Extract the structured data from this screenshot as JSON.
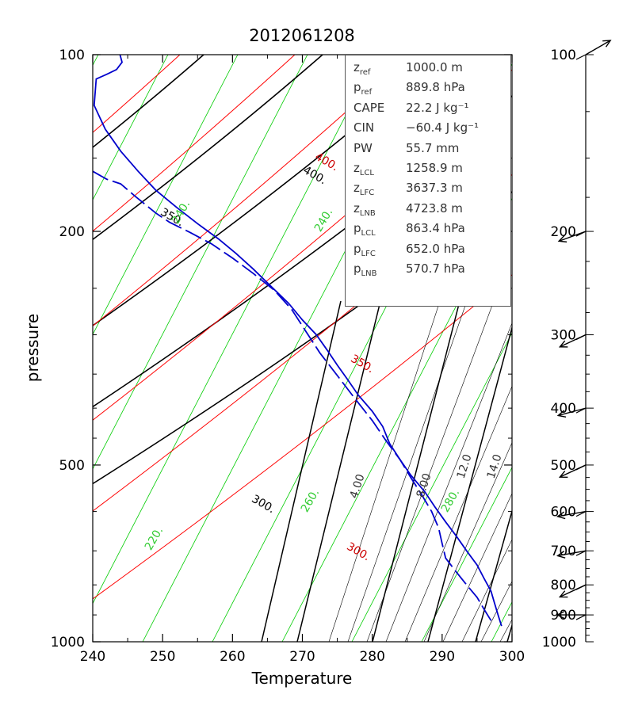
{
  "chart_data": {
    "type": "line",
    "title": "2012061208",
    "xlabel": "Temperature",
    "ylabel": "pressure",
    "xlim": [
      240,
      300
    ],
    "ylim": [
      1000,
      100
    ],
    "yscale": "log",
    "x_ticks": [
      "240",
      "250",
      "260",
      "270",
      "280",
      "290",
      "300"
    ],
    "y_tick_labels": [
      {
        "p": 100,
        "label": "100"
      },
      {
        "p": 200,
        "label": "200"
      },
      {
        "p": 500,
        "label": "500"
      },
      {
        "p": 1000,
        "label": "1000"
      }
    ],
    "dry_adiabat_labels": [
      "300.",
      "350.",
      "400."
    ],
    "moist_adiabat_labels": [
      "300.",
      "350.",
      "400."
    ],
    "isotherm_labels": [
      "240.",
      "240.",
      "260.",
      "280.",
      "220."
    ],
    "mixing_ratio_labels": [
      "4.00",
      "8.00",
      "12.0",
      "14.0"
    ],
    "series": [
      {
        "name": "temperature",
        "color": "#0000cc",
        "points": [
          [
            243.9,
            100
          ],
          [
            244.2,
            103
          ],
          [
            243.4,
            106
          ],
          [
            242.0,
            108
          ],
          [
            240.5,
            110
          ],
          [
            240.2,
            122
          ],
          [
            241.8,
            134
          ],
          [
            244.0,
            146
          ],
          [
            246.5,
            158
          ],
          [
            249.0,
            170
          ],
          [
            252.0,
            182
          ],
          [
            255.0,
            194
          ],
          [
            258.0,
            206
          ],
          [
            260.5,
            218
          ],
          [
            263.0,
            232
          ],
          [
            265.5,
            248
          ],
          [
            268.0,
            265
          ],
          [
            270.0,
            283
          ],
          [
            272.0,
            300
          ],
          [
            273.5,
            318
          ],
          [
            275.0,
            338
          ],
          [
            276.5,
            358
          ],
          [
            278.0,
            380
          ],
          [
            280.0,
            405
          ],
          [
            281.5,
            430
          ],
          [
            282.5,
            460
          ],
          [
            284.0,
            490
          ],
          [
            285.5,
            520
          ],
          [
            287.5,
            555
          ],
          [
            289.0,
            590
          ],
          [
            290.5,
            625
          ],
          [
            292.0,
            660
          ],
          [
            293.5,
            700
          ],
          [
            295.0,
            740
          ],
          [
            296.0,
            780
          ],
          [
            297.0,
            820
          ],
          [
            297.5,
            860
          ],
          [
            298.0,
            900
          ],
          [
            298.5,
            940
          ]
        ]
      },
      {
        "name": "dewpoint",
        "color": "#0000cc",
        "dashed": true,
        "points": [
          [
            240.0,
            158
          ],
          [
            242.0,
            163
          ],
          [
            244.0,
            166
          ],
          [
            246.0,
            174
          ],
          [
            249.0,
            186
          ],
          [
            251.0,
            193
          ],
          [
            254.0,
            201
          ],
          [
            257.0,
            210
          ],
          [
            260.0,
            222
          ],
          [
            263.0,
            236
          ],
          [
            266.0,
            252
          ],
          [
            268.5,
            272
          ],
          [
            270.5,
            296
          ],
          [
            272.5,
            322
          ],
          [
            275.0,
            352
          ],
          [
            277.5,
            385
          ],
          [
            280.0,
            420
          ],
          [
            282.0,
            455
          ],
          [
            284.0,
            490
          ],
          [
            285.5,
            525
          ],
          [
            287.0,
            560
          ],
          [
            288.5,
            600
          ],
          [
            289.5,
            640
          ],
          [
            290.0,
            680
          ],
          [
            290.5,
            720
          ],
          [
            292.0,
            760
          ],
          [
            293.5,
            800
          ],
          [
            295.0,
            840
          ],
          [
            296.0,
            880
          ],
          [
            297.0,
            920
          ]
        ]
      }
    ],
    "wind_profile": {
      "levels": [
        "100",
        "200",
        "300",
        "400",
        "500",
        "600",
        "700",
        "800",
        "900",
        "1000"
      ],
      "barbs": [
        {
          "p": 100,
          "dir": 60
        },
        {
          "p": 200,
          "dir": 250
        },
        {
          "p": 300,
          "dir": 245
        },
        {
          "p": 400,
          "dir": 255
        },
        {
          "p": 500,
          "dir": 245
        },
        {
          "p": 600,
          "dir": 260
        },
        {
          "p": 700,
          "dir": 260
        },
        {
          "p": 800,
          "dir": 245
        },
        {
          "p": 900,
          "dir": 270
        }
      ]
    },
    "colors": {
      "isotherm": "#00cc00",
      "dry_adiabat": "#000000",
      "moist_adiabat": "#ff0000",
      "mixing_ratio": "#000000",
      "profile": "#0000cc"
    }
  },
  "stats": [
    {
      "sym": "z",
      "sub": "ref",
      "value": "1000.0 m"
    },
    {
      "sym": "p",
      "sub": "ref",
      "value": "889.8 hPa"
    },
    {
      "sym": "CAPE",
      "sub": "",
      "value": "22.2 J kg⁻¹"
    },
    {
      "sym": "CIN",
      "sub": "",
      "value": "−60.4 J kg⁻¹"
    },
    {
      "sym": "PW",
      "sub": "",
      "value": "55.7 mm"
    },
    {
      "sym": "z",
      "sub": "LCL",
      "value": "1258.9 m"
    },
    {
      "sym": "z",
      "sub": "LFC",
      "value": "3637.3 m"
    },
    {
      "sym": "z",
      "sub": "LNB",
      "value": "4723.8 m"
    },
    {
      "sym": "p",
      "sub": "LCL",
      "value": "863.4 hPa"
    },
    {
      "sym": "p",
      "sub": "LFC",
      "value": "652.0 hPa"
    },
    {
      "sym": "p",
      "sub": "LNB",
      "value": "570.7 hPa"
    }
  ]
}
